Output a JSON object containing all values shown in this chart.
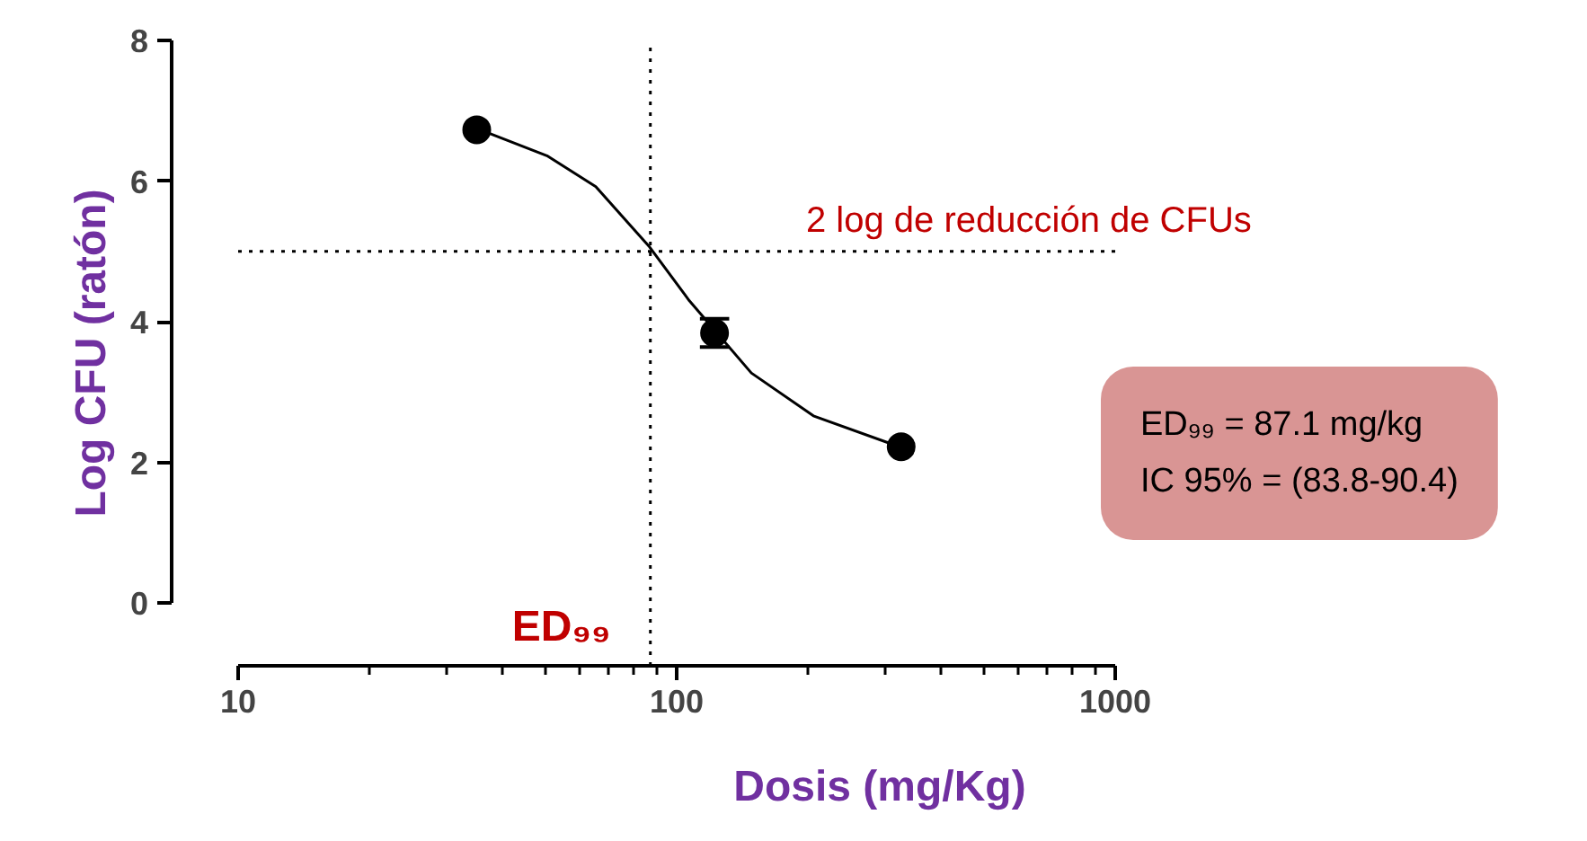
{
  "chart_data": {
    "type": "scatter",
    "xlabel": "Dosis (mg/Kg)",
    "ylabel": "Log CFU (ratón)",
    "log": "x",
    "xlim": [
      10,
      1000
    ],
    "ylim": [
      0,
      8
    ],
    "xticks": [
      10,
      100,
      1000
    ],
    "yticks": [
      0,
      2,
      4,
      6,
      8
    ],
    "grid": false,
    "series": [
      {
        "marker": "circle",
        "color": "#000000",
        "x": [
          35,
          122,
          325
        ],
        "values": [
          6.73,
          3.84,
          2.22
        ],
        "errors": [
          null,
          0.2,
          null
        ]
      },
      {
        "type": "line",
        "color": "#000000",
        "x": [
          35.6,
          50.6,
          65.4,
          86.8,
          106.8,
          148,
          205,
          322
        ],
        "values": [
          6.73,
          6.36,
          5.92,
          5.06,
          4.3,
          3.27,
          2.66,
          2.22
        ]
      }
    ],
    "ref_lines": [
      {
        "axis": "x",
        "value": 87.1,
        "label": "ED₉₉",
        "color": "#000000",
        "line_style": "dotted"
      },
      {
        "axis": "y",
        "value": 5,
        "label": "2 log de reducción de CFUs",
        "color": "#000000",
        "line_style": "dotted"
      }
    ],
    "annotations": [
      "ED₉₉ = 87.1 mg/kg",
      "IC 95% = (83.8-90.4)"
    ]
  }
}
